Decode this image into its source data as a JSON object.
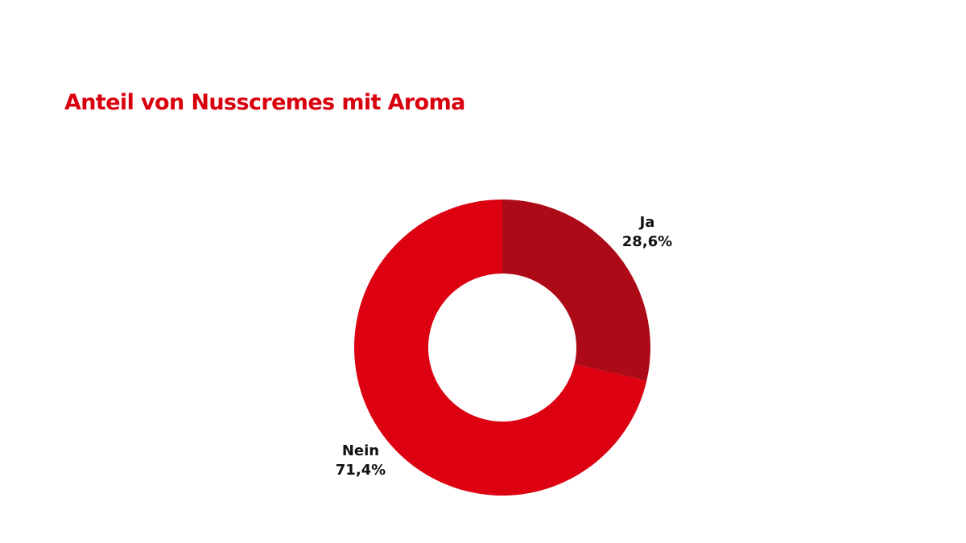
{
  "title": "Anteil von Nusscremes mit Aroma",
  "colors": {
    "title": "#d9000d",
    "ja": "#ad0a17",
    "nein": "#dc0010",
    "label": "#111111"
  },
  "chart_data": {
    "type": "pie",
    "variant": "donut",
    "title": "Anteil von Nusscremes mit Aroma",
    "slices": [
      {
        "label": "Ja",
        "value": 28.6,
        "display": "28,6%",
        "color": "#ad0a17"
      },
      {
        "label": "Nein",
        "value": 71.4,
        "display": "71,4%",
        "color": "#dc0010"
      }
    ],
    "start": "top",
    "direction": "clockwise",
    "legend": "none"
  }
}
